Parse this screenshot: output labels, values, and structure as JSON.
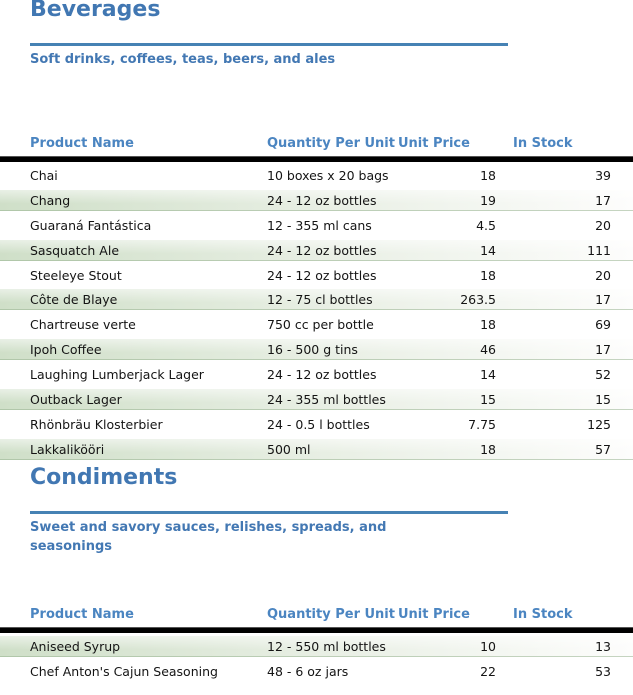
{
  "report": {
    "colors": {
      "accent_blue": "#4682b4",
      "column_header_blue": "#4b85c1",
      "stripe_green": "#cfdfc8",
      "header_rule_black": "#000000"
    },
    "sections": [
      {
        "title": "Beverages",
        "description": "Soft drinks, coffees, teas, beers, and ales",
        "columns": {
          "product": "Product Name",
          "quantity": "Quantity Per Unit",
          "price": "Unit Price",
          "stock": "In Stock"
        },
        "stripe_phase": 0,
        "rows": [
          [
            "Chai",
            "10 boxes x 20 bags",
            "18",
            "39"
          ],
          [
            "Chang",
            "24 - 12 oz bottles",
            "19",
            "17"
          ],
          [
            "Guaraná Fantástica",
            "12 - 355 ml cans",
            "4.5",
            "20"
          ],
          [
            "Sasquatch Ale",
            "24 - 12 oz bottles",
            "14",
            "111"
          ],
          [
            "Steeleye Stout",
            "24 - 12 oz bottles",
            "18",
            "20"
          ],
          [
            "Côte de Blaye",
            "12 - 75 cl bottles",
            "263.5",
            "17"
          ],
          [
            "Chartreuse verte",
            "750 cc per bottle",
            "18",
            "69"
          ],
          [
            "Ipoh Coffee",
            "16 - 500 g tins",
            "46",
            "17"
          ],
          [
            "Laughing Lumberjack Lager",
            "24 - 12 oz bottles",
            "14",
            "52"
          ],
          [
            "Outback Lager",
            "24 - 355 ml bottles",
            "15",
            "15"
          ],
          [
            "Rhönbräu Klosterbier",
            "24 - 0.5 l bottles",
            "7.75",
            "125"
          ],
          [
            "Lakkalikööri",
            "500 ml",
            "18",
            "57"
          ]
        ]
      },
      {
        "title": "Condiments",
        "description": "Sweet and savory sauces, relishes, spreads, and seasonings",
        "columns": {
          "product": "Product Name",
          "quantity": "Quantity Per Unit",
          "price": "Unit Price",
          "stock": "In Stock"
        },
        "stripe_phase": 1,
        "rows": [
          [
            "Aniseed Syrup",
            "12 - 550 ml bottles",
            "10",
            "13"
          ],
          [
            "Chef Anton's Cajun Seasoning",
            "48 - 6 oz jars",
            "22",
            "53"
          ]
        ]
      }
    ]
  }
}
